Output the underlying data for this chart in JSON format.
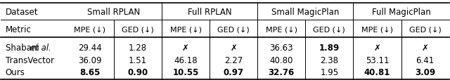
{
  "col_groups": [
    {
      "label": "Small RPLAN",
      "span": 2
    },
    {
      "label": "Full RPLAN",
      "span": 2
    },
    {
      "label": "Small MagicPlan",
      "span": 2
    },
    {
      "label": "Full MagicPlan",
      "span": 2
    }
  ],
  "metrics": [
    "MPE (↓)",
    "GED (↓)",
    "MPE (↓)",
    "GED (↓)",
    "MPE (↓)",
    "GED (↓)",
    "MPE (↓)",
    "GED (↓)"
  ],
  "rows": [
    {
      "name": "Shabani et al.",
      "values": [
        "29.44",
        "1.28",
        "✗",
        "✗",
        "36.63",
        "1.89",
        "✗",
        "✗"
      ],
      "bold": [
        false,
        false,
        false,
        false,
        false,
        true,
        false,
        false
      ]
    },
    {
      "name": "TransVector",
      "values": [
        "36.09",
        "1.51",
        "46.18",
        "2.27",
        "40.80",
        "2.38",
        "53.11",
        "6.41"
      ],
      "bold": [
        false,
        false,
        false,
        false,
        false,
        false,
        false,
        false
      ]
    },
    {
      "name": "Ours",
      "values": [
        "8.65",
        "0.90",
        "10.55",
        "0.97",
        "32.76",
        "1.95",
        "40.81",
        "3.09"
      ],
      "bold": [
        true,
        true,
        true,
        true,
        true,
        false,
        true,
        true
      ]
    }
  ],
  "dataset_col_label": "Dataset",
  "metric_col_label": "Metric",
  "background_color": "#ffffff",
  "text_color": "#000000",
  "font_size": 8.5,
  "header_font_size": 8.5
}
